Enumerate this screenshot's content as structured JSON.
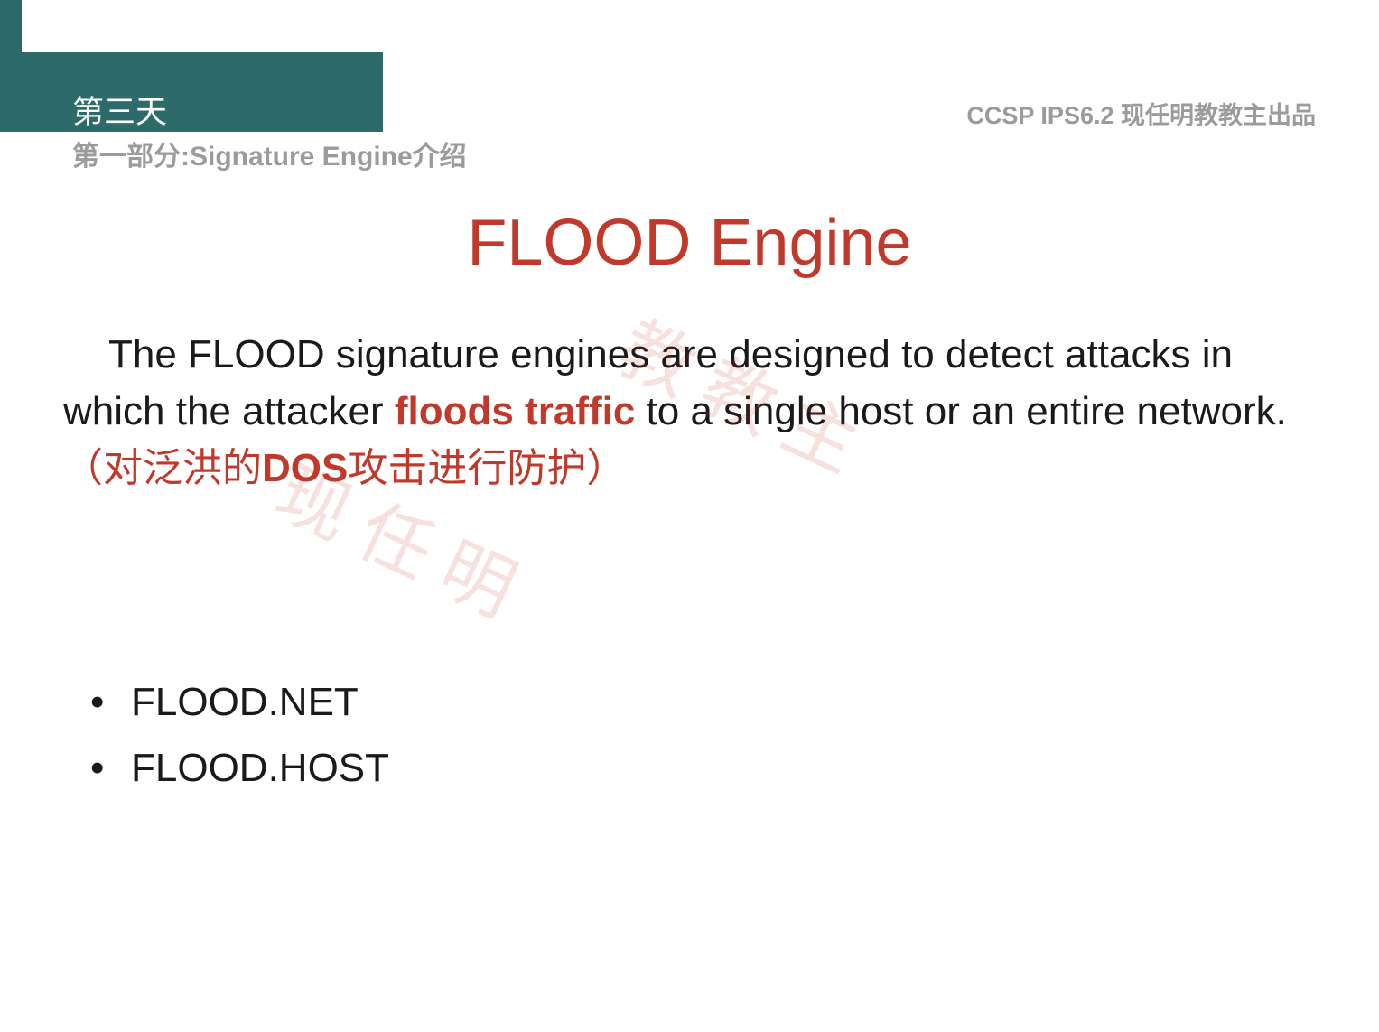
{
  "header": {
    "day_label": "第三天",
    "subtitle": "第一部分:Signature Engine介绍",
    "right_label": "CCSP IPS6.2 现任明教教主出品"
  },
  "title": "FLOOD Engine",
  "body": {
    "part1": "The FLOOD signature engines are designed to detect attacks in which the attacker ",
    "highlight1": "floods traffic",
    "part2": " to a single host or an entire network. ",
    "chinese_open": "（对泛洪的",
    "chinese_bold": "DOS",
    "chinese_rest": "攻击进行防护）"
  },
  "bullets": [
    "FLOOD.NET",
    "FLOOD.HOST"
  ],
  "watermark": {
    "wm1": "现任明",
    "wm2": "教教主"
  },
  "colors": {
    "teal": "#2d6b6b",
    "red": "#c0392b",
    "gray": "#9b9b9b",
    "text": "#1a1a1a",
    "bg": "#ffffff"
  },
  "typography": {
    "title_fontsize": 72,
    "body_fontsize": 44,
    "subtitle_fontsize": 30,
    "header_right_fontsize": 27,
    "day_fontsize": 35,
    "watermark_fontsize": 80
  }
}
